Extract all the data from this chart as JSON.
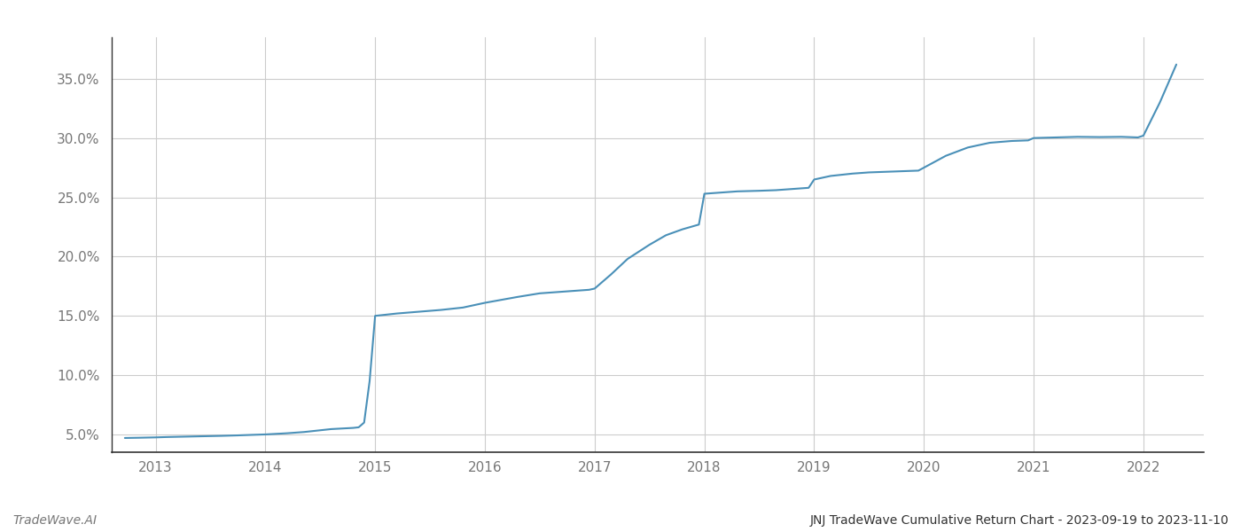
{
  "footer_left": "TradeWave.AI",
  "footer_right": "JNJ TradeWave Cumulative Return Chart - 2023-09-19 to 2023-11-10",
  "line_color": "#4a90b8",
  "background_color": "#ffffff",
  "grid_color": "#cccccc",
  "x_years": [
    2013,
    2014,
    2015,
    2016,
    2017,
    2018,
    2019,
    2020,
    2021,
    2022
  ],
  "x_values": [
    2012.72,
    2012.85,
    2012.95,
    2013.0,
    2013.1,
    2013.2,
    2013.3,
    2013.45,
    2013.6,
    2013.75,
    2013.9,
    2014.0,
    2014.1,
    2014.2,
    2014.35,
    2014.5,
    2014.6,
    2014.7,
    2014.8,
    2014.85,
    2014.9,
    2014.95,
    2015.0,
    2015.1,
    2015.2,
    2015.4,
    2015.6,
    2015.8,
    2015.9,
    2016.0,
    2016.15,
    2016.3,
    2016.5,
    2016.65,
    2016.8,
    2016.95,
    2017.0,
    2017.15,
    2017.3,
    2017.5,
    2017.65,
    2017.8,
    2017.95,
    2018.0,
    2018.15,
    2018.3,
    2018.5,
    2018.65,
    2018.8,
    2018.95,
    2019.0,
    2019.15,
    2019.35,
    2019.5,
    2019.65,
    2019.8,
    2019.95,
    2020.0,
    2020.2,
    2020.4,
    2020.6,
    2020.8,
    2020.95,
    2021.0,
    2021.2,
    2021.4,
    2021.6,
    2021.8,
    2021.95,
    2022.0,
    2022.15,
    2022.3
  ],
  "y_values": [
    4.7,
    4.72,
    4.74,
    4.75,
    4.78,
    4.8,
    4.82,
    4.85,
    4.88,
    4.92,
    4.97,
    5.0,
    5.05,
    5.1,
    5.2,
    5.35,
    5.45,
    5.5,
    5.55,
    5.6,
    6.0,
    9.5,
    15.0,
    15.1,
    15.2,
    15.35,
    15.5,
    15.7,
    15.9,
    16.1,
    16.35,
    16.6,
    16.9,
    17.0,
    17.1,
    17.2,
    17.3,
    18.5,
    19.8,
    21.0,
    21.8,
    22.3,
    22.7,
    25.3,
    25.4,
    25.5,
    25.55,
    25.6,
    25.7,
    25.8,
    26.5,
    26.8,
    27.0,
    27.1,
    27.15,
    27.2,
    27.25,
    27.5,
    28.5,
    29.2,
    29.6,
    29.75,
    29.8,
    30.0,
    30.05,
    30.1,
    30.08,
    30.1,
    30.05,
    30.2,
    33.0,
    36.2
  ],
  "ylim": [
    3.5,
    38.5
  ],
  "yticks": [
    5.0,
    10.0,
    15.0,
    20.0,
    25.0,
    30.0,
    35.0
  ],
  "xlim": [
    2012.6,
    2022.55
  ],
  "line_width": 1.5,
  "text_color": "#777777",
  "spine_color": "#333333",
  "footer_fontsize": 10,
  "tick_fontsize": 11
}
